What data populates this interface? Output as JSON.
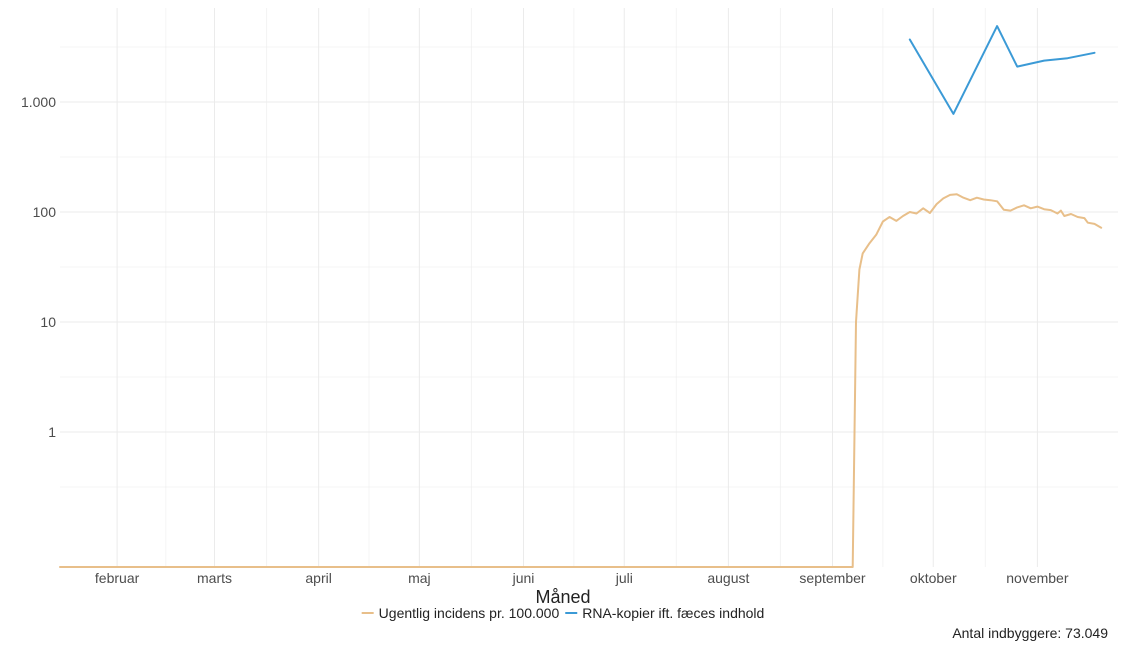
{
  "chart_data": {
    "type": "line",
    "xlabel": "Måned",
    "ylabel": "",
    "y_scale": "log",
    "y_ticks": [
      1,
      10,
      100,
      1000
    ],
    "y_tick_labels": [
      "1",
      "10",
      "100",
      "1.000"
    ],
    "x_range": [
      "2020-01-15",
      "2020-11-25"
    ],
    "x_ticks": [
      "2020-02-01",
      "2020-03-01",
      "2020-04-01",
      "2020-05-01",
      "2020-06-01",
      "2020-07-01",
      "2020-08-01",
      "2020-09-01",
      "2020-10-01",
      "2020-11-01"
    ],
    "x_tick_labels": [
      "februar",
      "marts",
      "april",
      "maj",
      "juni",
      "juli",
      "august",
      "september",
      "oktober",
      "november"
    ],
    "grid": true,
    "legend_position": "bottom",
    "caption": "Antal indbyggere: 73.049",
    "series": [
      {
        "name": "Ugentlig incidens pr. 100.000",
        "color": "#e8bf8a",
        "points": [
          [
            "2020-01-15",
            0.05
          ],
          [
            "2020-09-07",
            0.05
          ],
          [
            "2020-09-08",
            10
          ],
          [
            "2020-09-09",
            30
          ],
          [
            "2020-09-10",
            42
          ],
          [
            "2020-09-12",
            52
          ],
          [
            "2020-09-14",
            62
          ],
          [
            "2020-09-16",
            82
          ],
          [
            "2020-09-18",
            90
          ],
          [
            "2020-09-20",
            83
          ],
          [
            "2020-09-22",
            92
          ],
          [
            "2020-09-24",
            100
          ],
          [
            "2020-09-26",
            97
          ],
          [
            "2020-09-28",
            108
          ],
          [
            "2020-09-30",
            98
          ],
          [
            "2020-10-02",
            118
          ],
          [
            "2020-10-04",
            133
          ],
          [
            "2020-10-06",
            143
          ],
          [
            "2020-10-08",
            145
          ],
          [
            "2020-10-10",
            135
          ],
          [
            "2020-10-12",
            128
          ],
          [
            "2020-10-14",
            135
          ],
          [
            "2020-10-16",
            130
          ],
          [
            "2020-10-18",
            128
          ],
          [
            "2020-10-20",
            125
          ],
          [
            "2020-10-22",
            105
          ],
          [
            "2020-10-24",
            103
          ],
          [
            "2020-10-26",
            110
          ],
          [
            "2020-10-28",
            115
          ],
          [
            "2020-10-30",
            108
          ],
          [
            "2020-11-01",
            112
          ],
          [
            "2020-11-03",
            106
          ],
          [
            "2020-11-05",
            104
          ],
          [
            "2020-11-07",
            97
          ],
          [
            "2020-11-08",
            103
          ],
          [
            "2020-11-09",
            92
          ],
          [
            "2020-11-11",
            96
          ],
          [
            "2020-11-13",
            90
          ],
          [
            "2020-11-15",
            88
          ],
          [
            "2020-11-16",
            80
          ],
          [
            "2020-11-18",
            78
          ],
          [
            "2020-11-20",
            72
          ]
        ]
      },
      {
        "name": "RNA-kopier ift. fæces indhold",
        "color": "#3b9ad6",
        "points": [
          [
            "2020-09-24",
            3700
          ],
          [
            "2020-10-07",
            780
          ],
          [
            "2020-10-20",
            4900
          ],
          [
            "2020-10-26",
            2100
          ],
          [
            "2020-11-03",
            2380
          ],
          [
            "2020-11-10",
            2500
          ],
          [
            "2020-11-18",
            2800
          ]
        ]
      }
    ]
  }
}
